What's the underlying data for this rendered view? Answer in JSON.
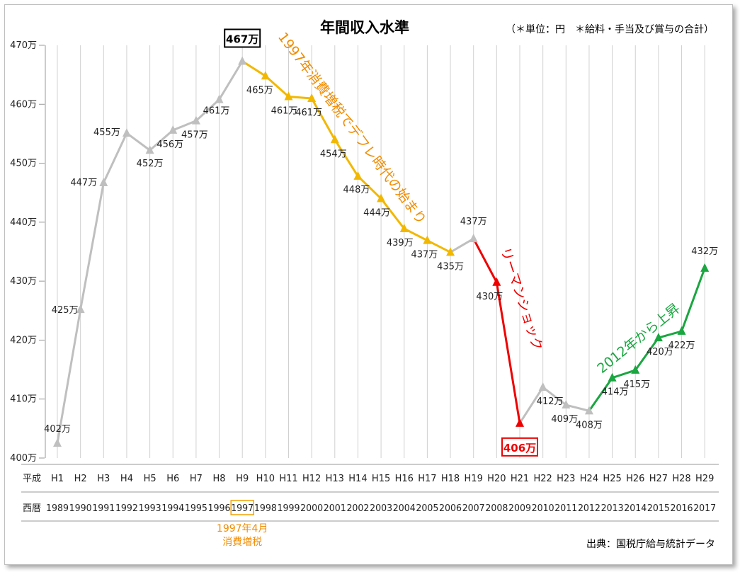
{
  "chart_data": {
    "type": "line",
    "title": "年間収入水準",
    "note": "（＊単位：円　＊給料・手当及び賞与の合計）",
    "ylim": [
      400,
      470
    ],
    "yticks": [
      "400万",
      "410万",
      "420万",
      "430万",
      "440万",
      "450万",
      "460万",
      "470万"
    ],
    "era_row_label": "平成",
    "year_row_label": "西暦",
    "heisei": [
      "H1",
      "H2",
      "H3",
      "H4",
      "H5",
      "H6",
      "H7",
      "H8",
      "H9",
      "H10",
      "H11",
      "H12",
      "H13",
      "H14",
      "H15",
      "H16",
      "H17",
      "H18",
      "H19",
      "H20",
      "H21",
      "H22",
      "H23",
      "H24",
      "H25",
      "H26",
      "H27",
      "H28",
      "H29"
    ],
    "years": [
      "1989",
      "1990",
      "1991",
      "1992",
      "1993",
      "1994",
      "1995",
      "1996",
      "1997",
      "1998",
      "1999",
      "2000",
      "2001",
      "2002",
      "2003",
      "2004",
      "2005",
      "2006",
      "2007",
      "2008",
      "2009",
      "2010",
      "2011",
      "2012",
      "2013",
      "2014",
      "2015",
      "2016",
      "2017"
    ],
    "values": [
      402.5,
      425.2,
      446.7,
      455.1,
      452.2,
      455.6,
      457.2,
      460.8,
      467.3,
      464.8,
      461.3,
      461.0,
      454.0,
      447.8,
      444.0,
      438.9,
      436.9,
      434.9,
      437.2,
      429.8,
      405.9,
      412.0,
      409.0,
      408.0,
      413.6,
      414.9,
      420.4,
      421.5,
      432.2
    ],
    "value_labels": [
      "402万",
      "425万",
      "447万",
      "455万",
      "452万",
      "456万",
      "457万",
      "461万",
      "467万",
      "465万",
      "461万",
      "461万",
      "454万",
      "448万",
      "444万",
      "439万",
      "437万",
      "435万",
      "437万",
      "430万",
      "406万",
      "412万",
      "409万",
      "408万",
      "414万",
      "415万",
      "420万",
      "422万",
      "432万"
    ],
    "segments": [
      {
        "from": 0,
        "to": 8,
        "color": "#bfbfbf"
      },
      {
        "from": 8,
        "to": 17,
        "color": "#f2b800"
      },
      {
        "from": 17,
        "to": 18,
        "color": "#bfbfbf"
      },
      {
        "from": 18,
        "to": 20,
        "color": "#ee0000"
      },
      {
        "from": 20,
        "to": 23,
        "color": "#bfbfbf"
      },
      {
        "from": 23,
        "to": 28,
        "color": "#1aa640"
      }
    ],
    "highlight_year_index": 8,
    "year_note": [
      "1997年4月",
      "消費増税"
    ],
    "annotations": [
      {
        "text": "1997年消費増税でデフレ時代の始まり",
        "color": "#f08c00"
      },
      {
        "text": "リーマンショック",
        "color": "#ee0000"
      },
      {
        "text": "2012年から上昇",
        "color": "#1aa640"
      }
    ],
    "source": "出典：国税庁給与統計データ",
    "grid": "vertical-only"
  }
}
